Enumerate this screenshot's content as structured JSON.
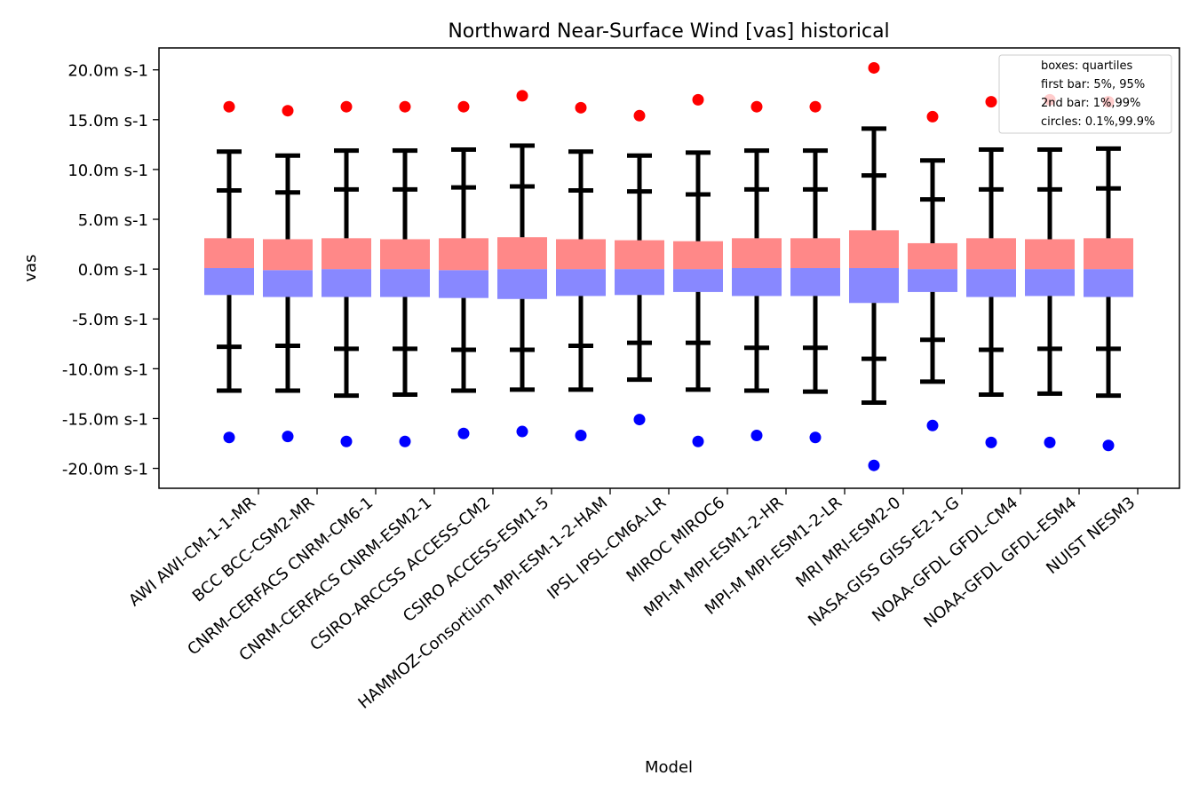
{
  "chart_data": {
    "type": "box",
    "title": "Northward Near-Surface Wind [vas] historical",
    "xlabel": "Model",
    "ylabel": "vas",
    "ylim": [
      -22,
      22.2
    ],
    "yticks": [
      20,
      15,
      10,
      5,
      0,
      -5,
      -10,
      -15,
      -20
    ],
    "ytick_labels": [
      "20.0m s-1",
      "15.0m s-1",
      "10.0m s-1",
      "5.0m s-1",
      "0.0m s-1",
      "-5.0m s-1",
      "-10.0m s-1",
      "-15.0m s-1",
      "-20.0m s-1"
    ],
    "legend": {
      "position": "top-right",
      "lines": [
        "boxes: quartiles",
        "first bar: 5%, 95%",
        "2nd bar: 1%,99%",
        "circles: 0.1%,99.9%"
      ]
    },
    "colors": {
      "upper_box": "#ff8888",
      "lower_box": "#8888ff",
      "high_circle": "#ff0000",
      "low_circle": "#0000ff",
      "whisker": "#000000"
    },
    "categories": [
      "AWI AWI-CM-1-1-MR",
      "BCC BCC-CSM2-MR",
      "CNRM-CERFACS CNRM-CM6-1",
      "CNRM-CERFACS CNRM-ESM2-1",
      "CSIRO-ARCCSS ACCESS-CM2",
      "CSIRO ACCESS-ESM1-5",
      "HAMMOZ-Consortium MPI-ESM-1-2-HAM",
      "IPSL IPSL-CM6A-LR",
      "MIROC MIROC6",
      "MPI-M MPI-ESM1-2-HR",
      "MPI-M MPI-ESM1-2-LR",
      "MRI MRI-ESM2-0",
      "NASA-GISS GISS-E2-1-G",
      "NOAA-GFDL GFDL-CM4",
      "NOAA-GFDL GFDL-ESM4",
      "NUIST NESM3"
    ],
    "series": [
      {
        "q1": -2.6,
        "median": 0.1,
        "q3": 3.1,
        "p5": -7.8,
        "p95": 7.9,
        "p1": -12.2,
        "p99": 11.8,
        "p01": -16.9,
        "p999": 16.3
      },
      {
        "q1": -2.8,
        "median": -0.1,
        "q3": 3.0,
        "p5": -7.7,
        "p95": 7.7,
        "p1": -12.2,
        "p99": 11.4,
        "p01": -16.8,
        "p999": 15.9
      },
      {
        "q1": -2.8,
        "median": 0.0,
        "q3": 3.1,
        "p5": -8.0,
        "p95": 8.0,
        "p1": -12.7,
        "p99": 11.9,
        "p01": -17.3,
        "p999": 16.3
      },
      {
        "q1": -2.8,
        "median": 0.0,
        "q3": 3.0,
        "p5": -8.0,
        "p95": 8.0,
        "p1": -12.6,
        "p99": 11.9,
        "p01": -17.3,
        "p999": 16.3
      },
      {
        "q1": -2.9,
        "median": -0.1,
        "q3": 3.1,
        "p5": -8.1,
        "p95": 8.2,
        "p1": -12.2,
        "p99": 12.0,
        "p01": -16.5,
        "p999": 16.3
      },
      {
        "q1": -3.0,
        "median": 0.0,
        "q3": 3.2,
        "p5": -8.1,
        "p95": 8.3,
        "p1": -12.1,
        "p99": 12.4,
        "p01": -16.3,
        "p999": 17.4
      },
      {
        "q1": -2.7,
        "median": 0.0,
        "q3": 3.0,
        "p5": -7.7,
        "p95": 7.9,
        "p1": -12.1,
        "p99": 11.8,
        "p01": -16.7,
        "p999": 16.2
      },
      {
        "q1": -2.6,
        "median": 0.0,
        "q3": 2.9,
        "p5": -7.4,
        "p95": 7.8,
        "p1": -11.1,
        "p99": 11.4,
        "p01": -15.1,
        "p999": 15.4
      },
      {
        "q1": -2.3,
        "median": 0.0,
        "q3": 2.8,
        "p5": -7.4,
        "p95": 7.5,
        "p1": -12.1,
        "p99": 11.7,
        "p01": -17.3,
        "p999": 17.0
      },
      {
        "q1": -2.7,
        "median": 0.1,
        "q3": 3.1,
        "p5": -7.9,
        "p95": 8.0,
        "p1": -12.2,
        "p99": 11.9,
        "p01": -16.7,
        "p999": 16.3
      },
      {
        "q1": -2.7,
        "median": 0.1,
        "q3": 3.1,
        "p5": -7.9,
        "p95": 8.0,
        "p1": -12.3,
        "p99": 11.9,
        "p01": -16.9,
        "p999": 16.3
      },
      {
        "q1": -3.4,
        "median": 0.1,
        "q3": 3.9,
        "p5": -9.0,
        "p95": 9.4,
        "p1": -13.4,
        "p99": 14.1,
        "p01": -19.7,
        "p999": 20.2
      },
      {
        "q1": -2.3,
        "median": 0.0,
        "q3": 2.6,
        "p5": -7.1,
        "p95": 7.0,
        "p1": -11.3,
        "p99": 10.9,
        "p01": -15.7,
        "p999": 15.3
      },
      {
        "q1": -2.8,
        "median": 0.0,
        "q3": 3.1,
        "p5": -8.1,
        "p95": 8.0,
        "p1": -12.6,
        "p99": 12.0,
        "p01": -17.4,
        "p999": 16.8
      },
      {
        "q1": -2.7,
        "median": 0.0,
        "q3": 3.0,
        "p5": -8.0,
        "p95": 8.0,
        "p1": -12.5,
        "p99": 12.0,
        "p01": -17.4,
        "p999": 17.0
      },
      {
        "q1": -2.8,
        "median": 0.0,
        "q3": 3.1,
        "p5": -8.0,
        "p95": 8.1,
        "p1": -12.7,
        "p99": 12.1,
        "p01": -17.7,
        "p999": 16.8
      }
    ]
  }
}
